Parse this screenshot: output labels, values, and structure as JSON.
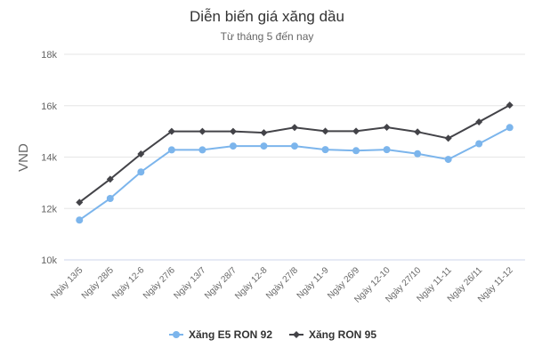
{
  "chart_data": {
    "type": "line",
    "title": "Diễn biến giá xăng dầu",
    "subtitle": "Từ tháng 5 đến nay",
    "ylabel": "VND",
    "xlabel": "",
    "ylim": [
      10000,
      18000
    ],
    "yticks": [
      10000,
      12000,
      14000,
      16000,
      18000
    ],
    "ytick_labels": [
      "10k",
      "12k",
      "14k",
      "16k",
      "18k"
    ],
    "grid": true,
    "legend_position": "bottom-center",
    "categories": [
      "Ngày 13/5",
      "Ngày 28/5",
      "Ngày 12-6",
      "Ngày 27/6",
      "Ngày 13/7",
      "Ngày 28/7",
      "Ngày 12-8",
      "Ngày 27/8",
      "Ngày 11-9",
      "Ngày 26/9",
      "Ngày 12-10",
      "Ngày 27/10",
      "Ngày 11-11",
      "Ngày 26/11",
      "Ngày 11-12"
    ],
    "series": [
      {
        "name": "Xăng E5 RON 92",
        "color": "#7cb5ec",
        "marker": "circle",
        "values": [
          11550,
          12390,
          13420,
          14280,
          14280,
          14430,
          14430,
          14430,
          14290,
          14250,
          14290,
          14130,
          13910,
          14520,
          15150
        ]
      },
      {
        "name": "Xăng RON 95",
        "color": "#434348",
        "marker": "diamond",
        "values": [
          12240,
          13140,
          14120,
          15000,
          15000,
          15000,
          14950,
          15150,
          15010,
          15010,
          15160,
          14980,
          14730,
          15370,
          16020
        ]
      }
    ]
  }
}
